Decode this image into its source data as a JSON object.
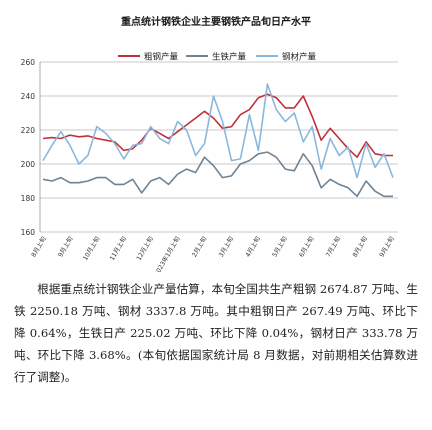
{
  "chart_data": {
    "type": "line",
    "title": "重点统计钢铁企业主要钢铁产品旬日产水平",
    "ylim": [
      160,
      260
    ],
    "yticks": [
      160,
      180,
      200,
      220,
      240,
      260
    ],
    "grid": true,
    "legend_position": "top",
    "xtick_labels": [
      "8月上旬",
      "9月上旬",
      "10月上旬",
      "11月上旬",
      "12月上旬",
      "2023年1月上旬",
      "2月上旬",
      "3月上旬",
      "4月上旬",
      "5月上旬",
      "6月上旬",
      "7月上旬",
      "8月上旬",
      "9月上旬"
    ],
    "series": [
      {
        "name": "粗钢产量",
        "color": "#c0303a",
        "values": [
          215,
          215.5,
          215,
          217,
          216,
          216.5,
          215,
          214,
          213,
          208,
          209,
          214,
          221,
          218,
          215,
          219,
          223,
          227,
          231,
          227,
          221,
          222,
          229,
          232,
          239,
          241,
          239,
          233,
          233,
          240,
          228,
          214,
          221,
          215,
          209,
          204,
          213,
          206,
          205,
          205
        ]
      },
      {
        "name": "生铁产量",
        "color": "#6d8396",
        "values": [
          191,
          190,
          192,
          189,
          189,
          190,
          192,
          192,
          188,
          188,
          191,
          183,
          190,
          192,
          188,
          194,
          197,
          195,
          204,
          199,
          192,
          193,
          200,
          202,
          206,
          207,
          204,
          197,
          196,
          206,
          199,
          186,
          191,
          188,
          186,
          181,
          190,
          184,
          181,
          181
        ]
      },
      {
        "name": "钢材产量",
        "color": "#8ab8dc",
        "values": [
          202,
          211,
          219,
          211,
          200,
          205,
          222,
          218,
          212,
          203,
          211,
          212,
          222,
          215,
          212,
          225,
          220,
          205,
          212,
          240,
          225,
          202,
          203,
          229,
          208,
          247,
          232,
          225,
          230,
          213,
          222,
          197,
          215,
          205,
          210,
          192,
          212,
          198,
          206,
          192
        ]
      }
    ]
  },
  "caption": "根据重点统计钢铁企业产量估算，本旬全国共生产粗钢 2674.87 万吨、生铁 2250.18 万吨、钢材 3337.8 万吨。其中粗钢日产 267.49 万吨、环比下降 0.64%，生铁日产 225.02 万吨、环比下降 0.04%，钢材日产 333.78 万吨、环比下降 3.68%。(本旬依据国家统计局 8 月数据，对前期相关估算数进行了调整)。"
}
